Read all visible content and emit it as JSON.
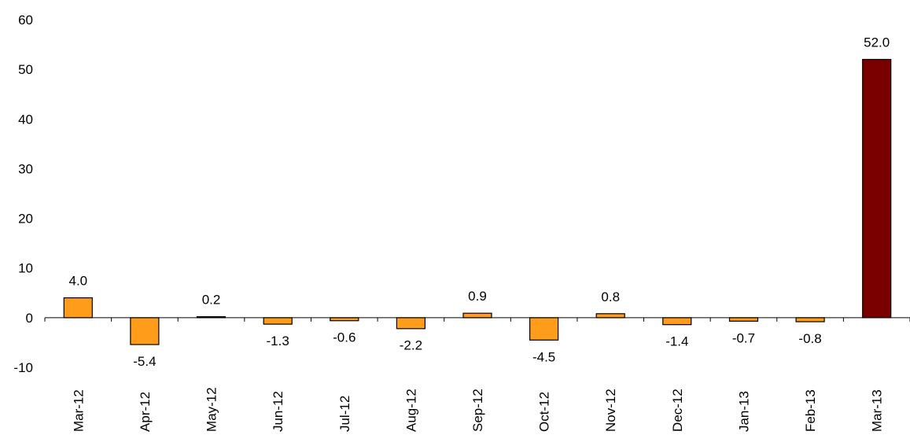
{
  "chart_data": {
    "type": "bar",
    "title": "",
    "xlabel": "",
    "ylabel": "",
    "ylim": [
      -10,
      60
    ],
    "yticks": [
      60,
      50,
      40,
      30,
      20,
      10,
      0,
      -10
    ],
    "categories": [
      "Mar-12",
      "Apr-12",
      "May-12",
      "Jun-12",
      "Jul-12",
      "Aug-12",
      "Sep-12",
      "Oct-12",
      "Nov-12",
      "Dec-12",
      "Jan-13",
      "Feb-13",
      "Mar-13"
    ],
    "values": [
      4.0,
      -5.4,
      0.2,
      -1.3,
      -0.6,
      -2.2,
      0.9,
      -4.5,
      0.8,
      -1.4,
      -0.7,
      -0.8,
      52.0
    ],
    "data_labels": [
      "4.0",
      "-5.4",
      "0.2",
      "-1.3",
      "-0.6",
      "-2.2",
      "0.9",
      "-4.5",
      "0.8",
      "-1.4",
      "-0.7",
      "-0.8",
      "52.0"
    ],
    "highlight_index": 12,
    "grid": false,
    "legend": "none"
  },
  "colors": {
    "bar": "#ff9d1b",
    "highlight_bar": "#7a0000",
    "bar_outline": "#000000",
    "axis": "#000000",
    "text": "#000000"
  }
}
